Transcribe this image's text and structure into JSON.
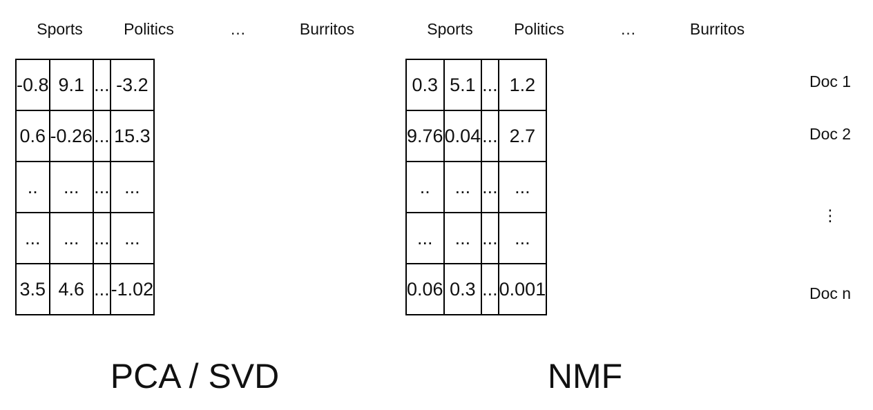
{
  "pca": {
    "title": "PCA / SVD",
    "headers": [
      "Sports",
      "Politics",
      "…",
      "Burritos"
    ],
    "rows": [
      [
        "-0.8",
        "9.1",
        "...",
        "-3.2"
      ],
      [
        "0.6",
        "-0.26",
        "...",
        "15.3"
      ],
      [
        "..",
        "...",
        "...",
        "..."
      ],
      [
        "...",
        "...",
        "...",
        "..."
      ],
      [
        "3.5",
        "4.6",
        "...",
        "-1.02"
      ]
    ]
  },
  "nmf": {
    "title": "NMF",
    "headers": [
      "Sports",
      "Politics",
      "…",
      "Burritos"
    ],
    "rows": [
      [
        "0.3",
        "5.1",
        "...",
        "1.2"
      ],
      [
        "9.76",
        "0.04",
        "...",
        "2.7"
      ],
      [
        "..",
        "...",
        "...",
        "..."
      ],
      [
        "...",
        "...",
        "...",
        "..."
      ],
      [
        "0.06",
        "0.3",
        "...",
        "0.001"
      ]
    ]
  },
  "doc_labels": [
    "Doc 1",
    "Doc 2",
    "⋮",
    "Doc n"
  ]
}
